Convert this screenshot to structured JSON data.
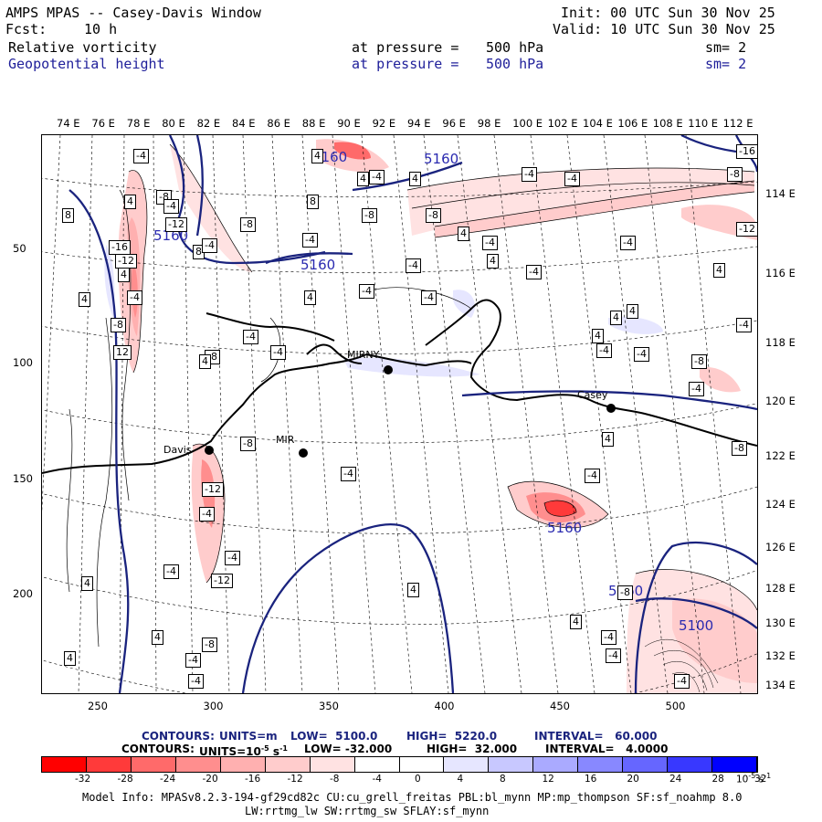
{
  "header": {
    "title": "AMPS MPAS -- Casey-Davis Window",
    "fcst_label": "Fcst:",
    "fcst_value": "10 h",
    "init": "Init: 00 UTC Sun 30 Nov 25",
    "valid": "Valid: 10 UTC Sun 30 Nov 25",
    "field1": {
      "name": "Relative vorticity",
      "pressure_label": "at pressure =",
      "pressure": "500 hPa",
      "sm": "sm= 2"
    },
    "field2": {
      "name": "Geopotential height",
      "pressure_label": "at pressure =",
      "pressure": "500 hPa",
      "sm": "sm= 2"
    }
  },
  "colors": {
    "text": "#000000",
    "blue_text": "#1f1f9a",
    "height_contour": "#1a237e"
  },
  "top_longitudes": [
    "74 E",
    "76 E",
    "78 E",
    "80 E",
    "82 E",
    "84 E",
    "86 E",
    "88 E",
    "90 E",
    "92 E",
    "94 E",
    "96 E",
    "98 E",
    "100 E",
    "102 E",
    "104 E",
    "106 E",
    "108 E",
    "110 E",
    "112 E"
  ],
  "right_longitudes": [
    "114 E",
    "116 E",
    "118 E",
    "120 E",
    "122 E",
    "124 E",
    "126 E",
    "128 E",
    "130 E",
    "132 E",
    "134 E"
  ],
  "left_ticks": [
    "50",
    "100",
    "150",
    "200"
  ],
  "bottom_ticks": [
    "250",
    "300",
    "350",
    "400",
    "450",
    "500"
  ],
  "stations": [
    {
      "name": "Davis"
    },
    {
      "name": "MIR"
    },
    {
      "name": "MIRNY"
    },
    {
      "name": "Casey"
    }
  ],
  "height_labels": [
    "5160",
    "5160",
    "5160",
    "5160",
    "5160",
    "5160",
    "5100"
  ],
  "contour_labels": [
    "-4",
    "4",
    "8",
    "-8",
    "-12",
    "-16",
    "4",
    "-4",
    "-8",
    "12",
    "-12",
    "4",
    "-4",
    "8",
    "-8",
    "-4",
    "4",
    "-4",
    "4",
    "-4",
    "-8",
    "-12",
    "-4",
    "-4",
    "4",
    "4",
    "4",
    "-4",
    "8",
    "4",
    "4",
    "-4",
    "-4",
    "-4",
    "-8",
    "-4",
    "4",
    "-4",
    "4",
    "-4",
    "-4",
    "4",
    "-8",
    "-4",
    "4",
    "4",
    "4",
    "-4",
    "-4",
    "4",
    "4",
    "-4",
    "-4",
    "-8",
    "-4",
    "-12",
    "-16",
    "-8",
    "-4",
    "-4",
    "-8",
    "-4",
    "4",
    "-4",
    "-4",
    "-4",
    "-8",
    "-12",
    "-8",
    "-4",
    "-4",
    "4",
    "-8"
  ],
  "footer": {
    "contours1": {
      "label": "CONTOURS:",
      "units": "UNITS=m",
      "low": "LOW=  5100.0",
      "high": "HIGH=  5220.0",
      "interval": "INTERVAL=   60.000"
    },
    "contours2": {
      "label": "CONTOURS:",
      "units": "UNITS=10",
      "units_exp": "-5",
      "units_suffix": "s",
      "units_suffix_exp": "-1",
      "low": "LOW= -32.000",
      "high": "HIGH=  32.000",
      "interval": "INTERVAL=   4.0000"
    },
    "colorbar_ticks": [
      "-32",
      "-28",
      "-24",
      "-20",
      "-16",
      "-12",
      "-8",
      "-4",
      "0",
      "4",
      "8",
      "12",
      "16",
      "20",
      "24",
      "28",
      "32"
    ],
    "colorbar_units": "10",
    "colorbar_units_exp": "-5",
    "colorbar_units_suffix": "s",
    "colorbar_units_suffix_exp": "-1",
    "colorbar_colors": [
      "#ff0000",
      "#ff3a3a",
      "#ff6a6a",
      "#ff8e8e",
      "#ffb0b0",
      "#ffcccc",
      "#ffe2e2",
      "#ffffff",
      "#ffffff",
      "#e6e6ff",
      "#c8c8ff",
      "#aaaaff",
      "#8888ff",
      "#6666ff",
      "#3838ff",
      "#0000ff"
    ],
    "model_info": "Model Info: MPASv8.2.3-194-gf29cd82c CU:cu_grell_freitas PBL:bl_mynn MP:mp_thompson SF:sf_noahmp 8.0",
    "model_info2": "LW:rrtmg_lw SW:rrtmg_sw SFLAY:sf_mynn"
  }
}
